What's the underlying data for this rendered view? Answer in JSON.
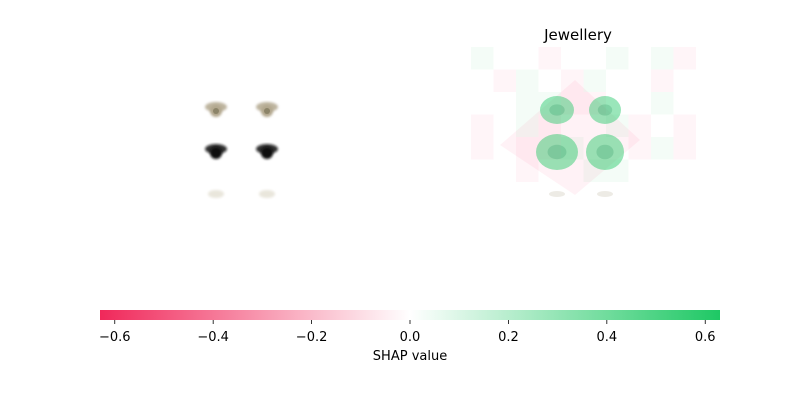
{
  "chart_data": {
    "type": "heatmap",
    "panels": [
      {
        "kind": "input-image",
        "title": ""
      },
      {
        "kind": "shap-overlay",
        "title": "Jewellery"
      }
    ],
    "colorbar": {
      "label": "SHAP value",
      "min": -0.63,
      "max": 0.63,
      "ticks": [
        -0.6,
        -0.4,
        -0.2,
        0.0,
        0.2,
        0.4,
        0.6
      ],
      "tick_labels": [
        "−0.6",
        "−0.4",
        "−0.2",
        "0.0",
        "0.2",
        "0.4",
        "0.6"
      ],
      "negative_color": "#ff0051",
      "positive_color": "#1ec864"
    },
    "input_image": {
      "description_rows": [
        "upper earrings",
        "middle earrings",
        "lower earrings"
      ],
      "row_tones": [
        "#b2a78e",
        "#111111",
        "#e9e6dc"
      ]
    },
    "shap_blobs": [
      {
        "label": "upper-left",
        "value": 0.45
      },
      {
        "label": "upper-right",
        "value": 0.45
      },
      {
        "label": "lower-left",
        "value": 0.5
      },
      {
        "label": "lower-right",
        "value": 0.5
      }
    ]
  }
}
